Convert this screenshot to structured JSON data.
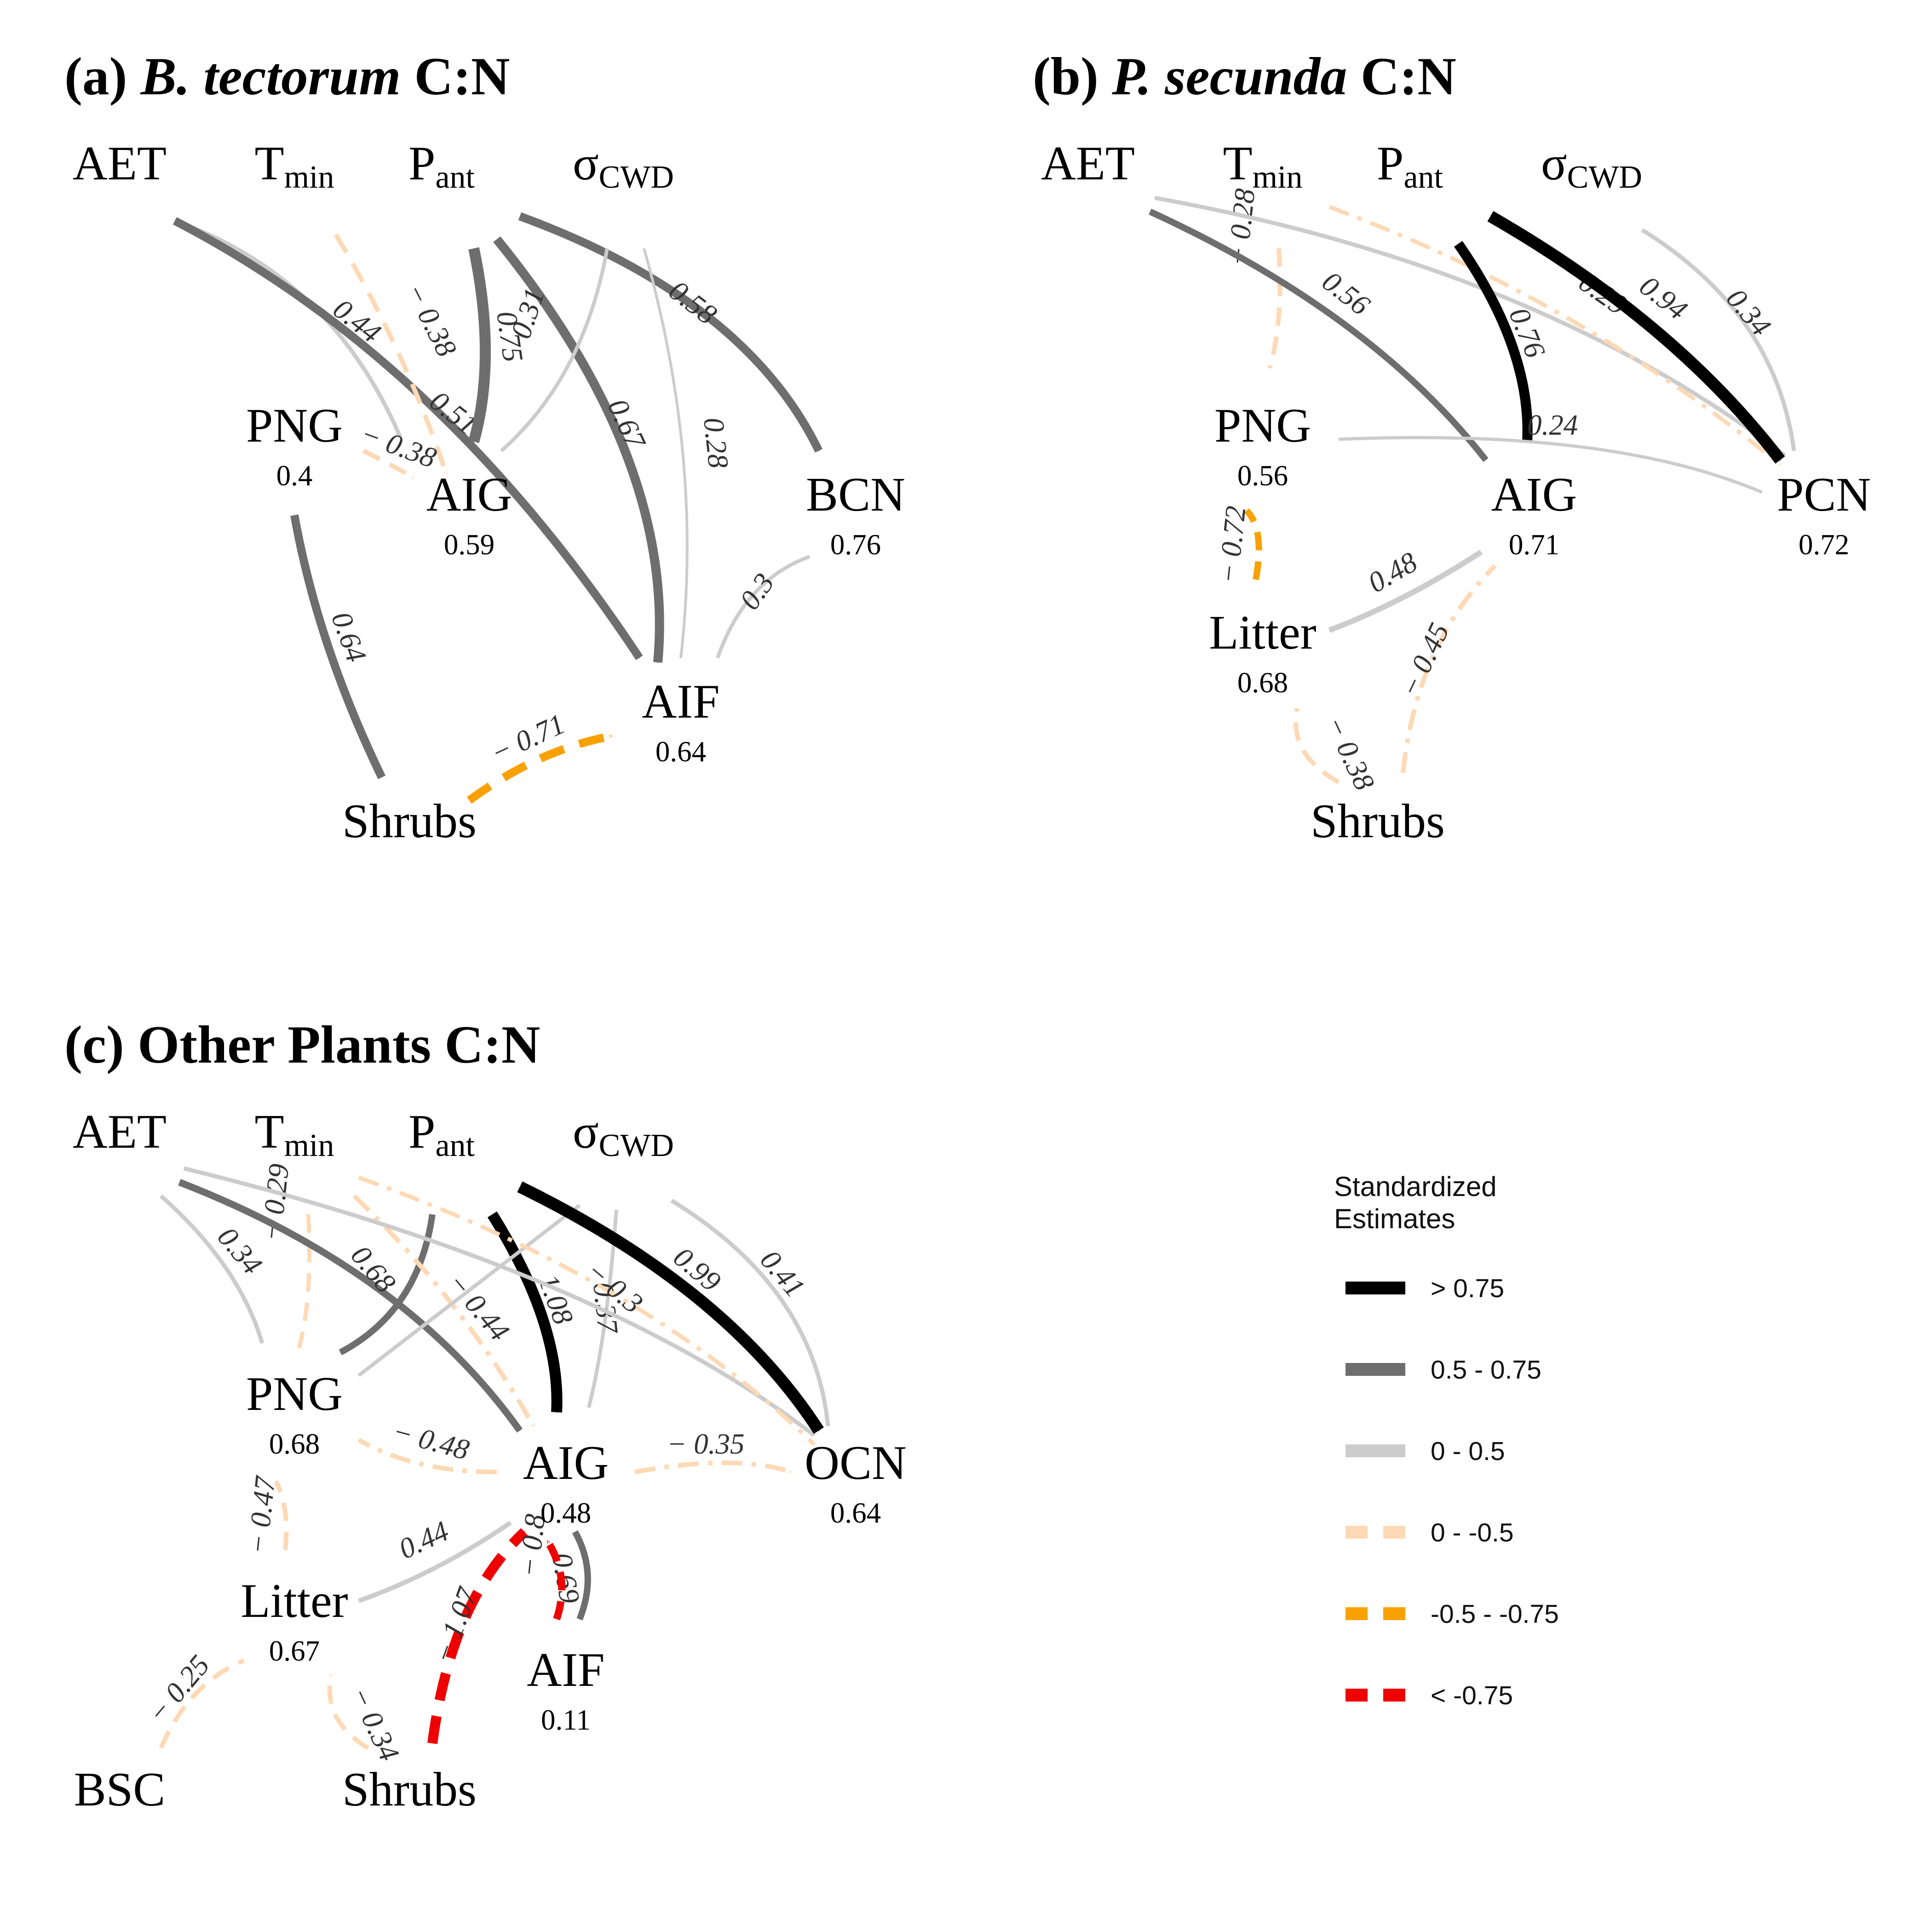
{
  "legend": {
    "title_line1": "Standardized",
    "title_line2": "Estimates",
    "items": [
      {
        "label": "> 0.75",
        "color": "#000000",
        "dashed": false
      },
      {
        "label": "0.5 - 0.75",
        "color": "#6e6e6e",
        "dashed": false
      },
      {
        "label": "0 - 0.5",
        "color": "#cccccc",
        "dashed": false
      },
      {
        "label": "0 - -0.5",
        "color": "#fdd9b5",
        "dashed": true
      },
      {
        "label": "-0.5 - -0.75",
        "color": "#f9a100",
        "dashed": true
      },
      {
        "label": "< -0.75",
        "color": "#ee0000",
        "dashed": true
      }
    ]
  },
  "panels": [
    {
      "title_prefix": "(a)",
      "title_italic": "B. tectorum",
      "title_suffix": "C:N",
      "nodes": [
        {
          "id": "AET",
          "label": "AET"
        },
        {
          "id": "Tmin",
          "label": "T",
          "sub": "min"
        },
        {
          "id": "Pant",
          "label": "P",
          "sub": "ant"
        },
        {
          "id": "sCWD",
          "label": "σ",
          "sub": "CWD"
        },
        {
          "id": "PNG",
          "label": "PNG",
          "r2": "0.4"
        },
        {
          "id": "AIG",
          "label": "AIG",
          "r2": "0.59"
        },
        {
          "id": "BCN",
          "label": "BCN",
          "r2": "0.76"
        },
        {
          "id": "AIF",
          "label": "AIF",
          "r2": "0.64"
        },
        {
          "id": "Shrubs",
          "label": "Shrubs"
        }
      ],
      "edges": [
        {
          "from": "AET",
          "to": "AIG",
          "label": "0.44"
        },
        {
          "from": "AET",
          "to": "AIF",
          "label": "0.51"
        },
        {
          "from": "Tmin",
          "to": "AIG",
          "label": "− 0.38"
        },
        {
          "from": "Pant",
          "to": "AIG",
          "label": "0.75"
        },
        {
          "from": "Pant",
          "to": "AIF",
          "label": "0.67"
        },
        {
          "from": "Pant",
          "to": "BCN",
          "label": "0.58"
        },
        {
          "from": "sCWD",
          "to": "AIG",
          "label": "0.31"
        },
        {
          "from": "sCWD",
          "to": "AIF",
          "label": "0.28"
        },
        {
          "from": "PNG",
          "to": "AIG",
          "label": "− 0.38"
        },
        {
          "from": "AIF",
          "to": "BCN",
          "label": "0.3"
        },
        {
          "from": "Shrubs",
          "to": "PNG",
          "label": "0.64"
        },
        {
          "from": "Shrubs",
          "to": "AIF",
          "label": "− 0.71"
        }
      ]
    },
    {
      "title_prefix": "(b)",
      "title_italic": "P. secunda",
      "title_suffix": "C:N",
      "nodes": [
        {
          "id": "AET",
          "label": "AET"
        },
        {
          "id": "Tmin",
          "label": "T",
          "sub": "min"
        },
        {
          "id": "Pant",
          "label": "P",
          "sub": "ant"
        },
        {
          "id": "sCWD",
          "label": "σ",
          "sub": "CWD"
        },
        {
          "id": "PNG",
          "label": "PNG",
          "r2": "0.56"
        },
        {
          "id": "AIG",
          "label": "AIG",
          "r2": "0.71"
        },
        {
          "id": "PCN",
          "label": "PCN",
          "r2": "0.72"
        },
        {
          "id": "Litter",
          "label": "Litter",
          "r2": "0.68"
        },
        {
          "id": "Shrubs",
          "label": "Shrubs"
        }
      ],
      "edges": [
        {
          "from": "Tmin",
          "to": "PNG",
          "label": "− 0.28"
        },
        {
          "from": "AET",
          "to": "AIG",
          "label": "0.56"
        },
        {
          "from": "AET",
          "to": "PCN",
          "label": ""
        },
        {
          "from": "Tmin",
          "to": "PCN",
          "label": "− 0.29"
        },
        {
          "from": "Pant",
          "to": "AIG",
          "label": "0.76"
        },
        {
          "from": "Pant",
          "to": "PCN",
          "label": "0.94"
        },
        {
          "from": "sCWD",
          "to": "PCN",
          "label": "0.34"
        },
        {
          "from": "PNG",
          "to": "PCN",
          "label": "0.24"
        },
        {
          "from": "Litter",
          "to": "PNG",
          "label": "− 0.72"
        },
        {
          "from": "AIG",
          "to": "Litter",
          "label": "0.48"
        },
        {
          "from": "Shrubs",
          "to": "AIG",
          "label": "− 0.45"
        },
        {
          "from": "Shrubs",
          "to": "Litter",
          "label": "− 0.38"
        }
      ]
    },
    {
      "title_prefix": "(c)",
      "title_italic": "",
      "title_suffix": "Other Plants C:N",
      "nodes": [
        {
          "id": "AET",
          "label": "AET"
        },
        {
          "id": "Tmin",
          "label": "T",
          "sub": "min"
        },
        {
          "id": "Pant",
          "label": "P",
          "sub": "ant"
        },
        {
          "id": "sCWD",
          "label": "σ",
          "sub": "CWD"
        },
        {
          "id": "PNG",
          "label": "PNG",
          "r2": "0.68"
        },
        {
          "id": "AIG",
          "label": "AIG",
          "r2": "0.48"
        },
        {
          "id": "OCN",
          "label": "OCN",
          "r2": "0.64"
        },
        {
          "id": "Litter",
          "label": "Litter",
          "r2": "0.67"
        },
        {
          "id": "AIF",
          "label": "AIF",
          "r2": "0.11"
        },
        {
          "id": "BSC",
          "label": "BSC"
        },
        {
          "id": "Shrubs",
          "label": "Shrubs"
        }
      ],
      "edges": [
        {
          "from": "AET",
          "to": "PNG",
          "label": "0.34"
        },
        {
          "from": "Tmin",
          "to": "PNG",
          "label": "− 0.29"
        },
        {
          "from": "AET",
          "to": "AIG",
          "label": "0.68"
        },
        {
          "from": "Pant",
          "to": "PNG",
          "label": ""
        },
        {
          "from": "Tmin",
          "to": "AIG",
          "label": "− 0.44"
        },
        {
          "from": "Pant",
          "to": "AIG",
          "label": "1.08"
        },
        {
          "from": "sCWD",
          "to": "PNG",
          "label": ""
        },
        {
          "from": "sCWD",
          "to": "AIG",
          "label": "0.37"
        },
        {
          "from": "AET",
          "to": "OCN",
          "label": ""
        },
        {
          "from": "Tmin",
          "to": "OCN",
          "label": "− 0.3"
        },
        {
          "from": "Pant",
          "to": "OCN",
          "label": "0.99"
        },
        {
          "from": "sCWD",
          "to": "OCN",
          "label": "0.41"
        },
        {
          "from": "AIG",
          "to": "PNG",
          "label": "− 0.48"
        },
        {
          "from": "AIG",
          "to": "OCN",
          "label": "− 0.35"
        },
        {
          "from": "Litter",
          "to": "PNG",
          "label": "− 0.47"
        },
        {
          "from": "AIG",
          "to": "Litter",
          "label": "0.44"
        },
        {
          "from": "AIG",
          "to": "AIF",
          "label": "0.69"
        },
        {
          "from": "Shrubs",
          "to": "AIG",
          "label": "− 1.07"
        },
        {
          "from": "Shrubs",
          "to": "AIF",
          "label": "− 0.8"
        },
        {
          "from": "BSC",
          "to": "Litter",
          "label": "− 0.25"
        },
        {
          "from": "Shrubs",
          "to": "Litter",
          "label": "− 0.34"
        }
      ]
    }
  ]
}
